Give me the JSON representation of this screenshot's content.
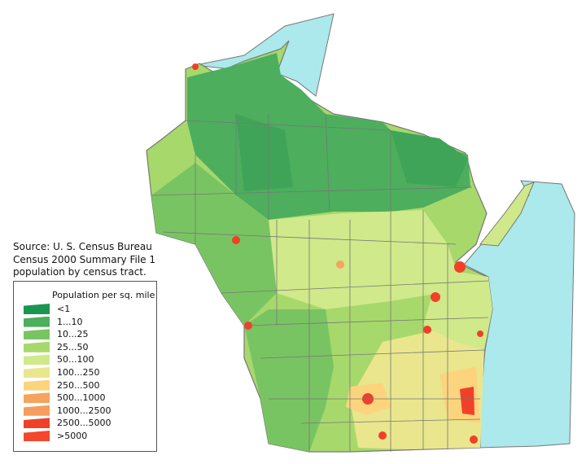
{
  "source": {
    "lines": [
      "Source: U. S. Census Bureau",
      "Census 2000  Summary File 1",
      "population by census tract."
    ]
  },
  "legend": {
    "title": "Population per sq. mile",
    "items": [
      {
        "label": "<1",
        "color": "#1b9652"
      },
      {
        "label": "1...10",
        "color": "#4dae5d"
      },
      {
        "label": "10...25",
        "color": "#79c462"
      },
      {
        "label": "25...50",
        "color": "#a7d86c"
      },
      {
        "label": "50...100",
        "color": "#d0e98a"
      },
      {
        "label": "100...250",
        "color": "#e9e68e"
      },
      {
        "label": "250...500",
        "color": "#fcd47e"
      },
      {
        "label": "500...1000",
        "color": "#f6a35e"
      },
      {
        "label": "1000...2500",
        "color": "#f59d5f"
      },
      {
        "label": "2500...5000",
        "color": "#f0402a"
      },
      {
        "label": ">5000",
        "color": "#f3482e"
      }
    ]
  },
  "colors": {
    "water": "#abe9ec",
    "border": "#777777"
  }
}
